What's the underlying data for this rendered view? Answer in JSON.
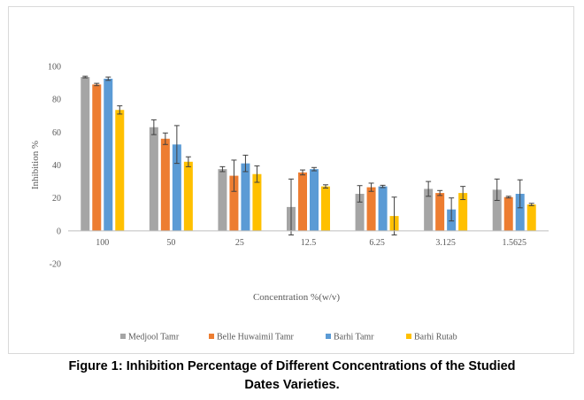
{
  "caption": {
    "line1": "Figure 1: Inhibition Percentage of Different Concentrations of the Studied",
    "line2": "Dates Varieties."
  },
  "chart_data": {
    "type": "bar",
    "title": "",
    "xlabel": "Concentration %(w/v)",
    "ylabel": "Inhibition %",
    "ylim": [
      -20,
      100
    ],
    "yticks": [
      -20,
      0,
      20,
      40,
      60,
      80,
      100
    ],
    "grid": false,
    "legend": "bottom",
    "categories": [
      "100",
      "50",
      "25",
      "12.5",
      "6.25",
      "3.125",
      "1.5625"
    ],
    "series": [
      {
        "name": "Medjool Tamr",
        "color": "#a5a5a5",
        "values": [
          93.5,
          63,
          37.5,
          14.5,
          22.5,
          25.5,
          25
        ],
        "errors": [
          0.5,
          4.5,
          1.5,
          17,
          5,
          4.5,
          6.5
        ]
      },
      {
        "name": "Belle Huwaimil Tamr",
        "color": "#ed7d31",
        "values": [
          89,
          56,
          33.5,
          35.5,
          26.5,
          23,
          20.5
        ],
        "errors": [
          0.7,
          3.5,
          9.5,
          1.5,
          2.5,
          1.5,
          0.5
        ]
      },
      {
        "name": "Barhi Tamr",
        "color": "#5b9bd5",
        "values": [
          92.5,
          52.5,
          41,
          37.5,
          27,
          13,
          22.5
        ],
        "errors": [
          1,
          11.5,
          5,
          1,
          0.7,
          7,
          8.5
        ]
      },
      {
        "name": "Barhi Rutab",
        "color": "#ffc000",
        "values": [
          73.5,
          42,
          34.5,
          27,
          9,
          23,
          16
        ],
        "errors": [
          2.5,
          3,
          5,
          1,
          11.5,
          4,
          0.7
        ]
      }
    ]
  }
}
